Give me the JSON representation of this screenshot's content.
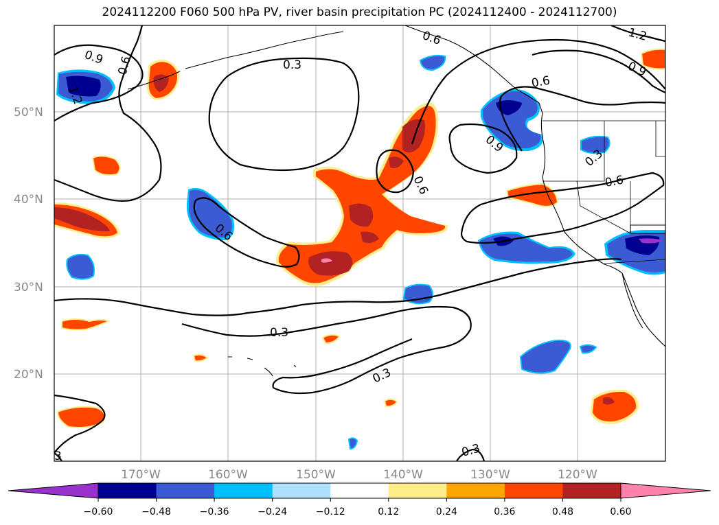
{
  "title": "2024112200 F060 500 hPa PV, river basin precipitation PC (2024112400 - 2024112700)",
  "lat_labels": [
    "50°N",
    "40°N",
    "30°N",
    "20°N"
  ],
  "lon_labels": [
    "170°W",
    "160°W",
    "150°W",
    "140°W",
    "130°W",
    "120°W"
  ],
  "contour_labels": {
    "c1": "0.9",
    "c2": "0.6",
    "c3": "0.3",
    "c4": "0.6",
    "c5": "0.6",
    "c6": "1.2",
    "c7": "0.9",
    "c8": "0.6",
    "c9": "0.9",
    "c10": "0.3",
    "c11": "0.6",
    "c12": "0.6",
    "c13": "0.3",
    "c14": "0.3",
    "c15": "0.3",
    "c16": "1.2",
    "c17": "3"
  },
  "colorbar": {
    "ticks": [
      "−0.60",
      "−0.48",
      "−0.36",
      "−0.24",
      "−0.12",
      "0.12",
      "0.24",
      "0.36",
      "0.48",
      "0.60"
    ],
    "colors": [
      "#9932cc",
      "#000090",
      "#3a5bd3",
      "#00bfff",
      "#ade1fb",
      "#ffffff",
      "#ffec8b",
      "#ffa500",
      "#ff4500",
      "#b22222",
      "#ff82ab",
      "#ff82ab"
    ]
  },
  "colors": {
    "neg_dark": "#000090",
    "neg_mid": "#3a5bd3",
    "neg_light": "#00bfff",
    "pos_yellow": "#ffec8b",
    "pos_orange": "#ff4500",
    "pos_red": "#b22222",
    "pos_pink": "#ff82ab",
    "grid": "#b0b0b0"
  }
}
